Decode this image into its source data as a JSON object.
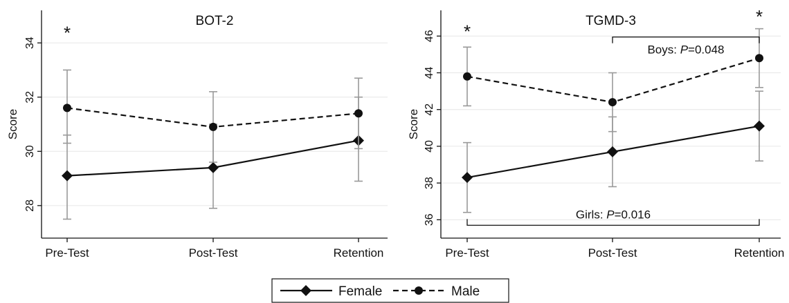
{
  "legend": {
    "placement": "bottom-center",
    "items": [
      {
        "label": "Female",
        "marker": "diamond",
        "line": "solid"
      },
      {
        "label": "Male",
        "marker": "circle",
        "line": "dashed"
      }
    ]
  },
  "colors": {
    "line": "#111111",
    "errorbar": "#999999",
    "grid": "#e6e6e6"
  },
  "chart_data": [
    {
      "type": "line",
      "title": "BOT-2",
      "xlabel": "",
      "ylabel": "Score",
      "categories": [
        "Pre-Test",
        "Post-Test",
        "Retention"
      ],
      "ylim": [
        26.8,
        35.2
      ],
      "yticks": [
        28,
        30,
        32,
        34
      ],
      "grid": true,
      "series": [
        {
          "name": "Female",
          "values": [
            29.1,
            29.4,
            30.4
          ],
          "lower": [
            27.5,
            27.9,
            28.9
          ],
          "upper": [
            30.6,
            31.0,
            32.0
          ]
        },
        {
          "name": "Male",
          "values": [
            31.6,
            30.9,
            31.4
          ],
          "lower": [
            30.3,
            29.6,
            30.1
          ],
          "upper": [
            33.0,
            32.2,
            32.7
          ]
        }
      ],
      "annotations": [
        {
          "text": "*",
          "x": "Pre-Test",
          "y": 34.4
        }
      ],
      "brackets": []
    },
    {
      "type": "line",
      "title": "TGMD-3",
      "xlabel": "",
      "ylabel": "Score",
      "categories": [
        "Pre-Test",
        "Post-Test",
        "Retention"
      ],
      "ylim": [
        35.0,
        47.4
      ],
      "yticks": [
        36,
        38,
        40,
        42,
        44,
        46
      ],
      "grid": true,
      "series": [
        {
          "name": "Female",
          "values": [
            38.3,
            39.7,
            41.1
          ],
          "lower": [
            36.4,
            37.8,
            39.2
          ],
          "upper": [
            40.2,
            41.6,
            43.0
          ]
        },
        {
          "name": "Male",
          "values": [
            43.8,
            42.4,
            44.8
          ],
          "lower": [
            42.2,
            40.8,
            43.2
          ],
          "upper": [
            45.4,
            44.0,
            46.4
          ]
        }
      ],
      "annotations": [
        {
          "text": "*",
          "x": "Pre-Test",
          "y": 46.3
        },
        {
          "text": "*",
          "x": "Retention",
          "y": 47.1
        }
      ],
      "brackets": [
        {
          "from": "Post-Test",
          "to": "Retention",
          "y": 45.95,
          "direction": "down",
          "label_prefix": "Boys: ",
          "label_italic": "P",
          "label_suffix": "=0.048"
        },
        {
          "from": "Pre-Test",
          "to": "Retention",
          "y": 35.7,
          "direction": "up",
          "label_prefix": "Girls: ",
          "label_italic": "P",
          "label_suffix": "=0.016"
        }
      ]
    }
  ]
}
